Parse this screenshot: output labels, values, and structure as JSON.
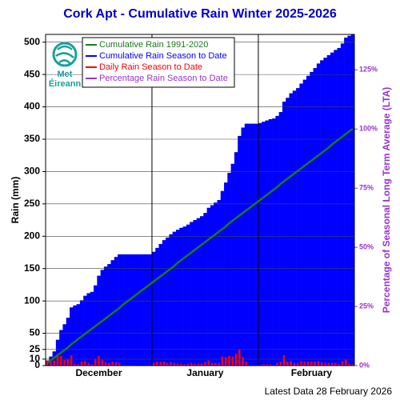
{
  "chart_data": {
    "type": "bar",
    "title": "Cork Apt - Cumulative Rain Winter 2025-2026",
    "y_label": "Rain (mm)",
    "y2_label": "Percentage  of Seasonal Long Term Average (LTA)",
    "footer": "Latest Data 28 February 2026",
    "logo": [
      "Met",
      "Éireann"
    ],
    "categories": [
      null,
      null,
      null,
      null,
      null,
      null,
      null,
      null,
      null,
      null,
      null,
      null,
      null,
      null,
      null,
      "December",
      null,
      null,
      null,
      null,
      null,
      null,
      null,
      null,
      null,
      null,
      null,
      null,
      null,
      null,
      null,
      null,
      null,
      null,
      null,
      null,
      null,
      null,
      null,
      null,
      null,
      null,
      null,
      null,
      null,
      null,
      "January",
      null,
      null,
      null,
      null,
      null,
      null,
      null,
      null,
      null,
      null,
      null,
      null,
      null,
      null,
      null,
      null,
      null,
      null,
      null,
      null,
      null,
      null,
      null,
      null,
      null,
      null,
      null,
      null,
      null,
      null,
      "February",
      null,
      null,
      null,
      null,
      null,
      null,
      null,
      null,
      null,
      null,
      null,
      null
    ],
    "series": [
      {
        "name": "Cumulative Rain 1991-2020",
        "color": "#1a7a1a",
        "kind": "line",
        "values": [
          4,
          8,
          12,
          16,
          20,
          24,
          28,
          33,
          37,
          41,
          45,
          49,
          53,
          57,
          61,
          65,
          69,
          73,
          77,
          81,
          85,
          89,
          94,
          98,
          102,
          106,
          110,
          114,
          118,
          122,
          126,
          130,
          134,
          138,
          142,
          146,
          150,
          154,
          159,
          163,
          167,
          171,
          175,
          179,
          183,
          187,
          191,
          195,
          199,
          203,
          207,
          211,
          215,
          220,
          224,
          228,
          232,
          236,
          240,
          244,
          248,
          252,
          256,
          260,
          264,
          268,
          272,
          276,
          281,
          285,
          289,
          293,
          297,
          301,
          305,
          309,
          313,
          317,
          321,
          325,
          329,
          333,
          337,
          342,
          346,
          350,
          354,
          358,
          362,
          366
        ]
      },
      {
        "name": "Cumulative Rain Season to Date",
        "color": "#0000ff",
        "kind": "bar",
        "values": [
          8,
          14,
          22,
          40,
          55,
          64,
          74,
          90,
          93,
          95,
          101,
          108,
          112,
          114,
          124,
          139,
          148,
          153,
          157,
          163,
          168,
          172,
          172,
          172,
          172,
          172,
          172,
          172,
          172,
          172,
          172,
          176,
          182,
          188,
          194,
          198,
          203,
          207,
          210,
          213,
          215,
          218,
          222,
          225,
          228,
          231,
          236,
          244,
          248,
          252,
          256,
          270,
          283,
          298,
          312,
          330,
          355,
          368,
          374,
          374,
          374,
          374,
          375,
          377,
          379,
          381,
          382,
          386,
          392,
          408,
          414,
          421,
          425,
          429,
          436,
          442,
          448,
          454,
          460,
          467,
          472,
          476,
          480,
          484,
          488,
          491,
          498,
          507,
          510,
          512
        ]
      },
      {
        "name": "Daily Rain Season to Date",
        "color": "#ff0000",
        "kind": "daily",
        "values": [
          8,
          6,
          8,
          18,
          15,
          9,
          10,
          16,
          3,
          2,
          6,
          7,
          4,
          2,
          10,
          15,
          9,
          5,
          4,
          6,
          5,
          4,
          0,
          0,
          0,
          0,
          0,
          0,
          0,
          0,
          0,
          4,
          6,
          6,
          6,
          4,
          5,
          4,
          3,
          3,
          2,
          3,
          4,
          3,
          3,
          3,
          5,
          8,
          4,
          4,
          4,
          14,
          13,
          15,
          14,
          18,
          25,
          13,
          6,
          0,
          0,
          0,
          1,
          2,
          2,
          2,
          1,
          4,
          6,
          16,
          6,
          7,
          4,
          4,
          7,
          6,
          6,
          6,
          6,
          7,
          5,
          4,
          4,
          4,
          4,
          3,
          7,
          9,
          3,
          2
        ]
      },
      {
        "name": "Percentage Rain Season to Date",
        "color": "#9933cc",
        "axis": "y2"
      }
    ],
    "ylim": [
      0,
      512
    ],
    "yticks": [
      0,
      10,
      25,
      50,
      100,
      150,
      200,
      250,
      300,
      350,
      400,
      450,
      500
    ],
    "y2lim": [
      0,
      140
    ],
    "y2ticks": [
      {
        "value": 0,
        "label": "0%"
      },
      {
        "value": 25,
        "label": "25%"
      },
      {
        "value": 50,
        "label": "50%"
      },
      {
        "value": 75,
        "label": "75%"
      },
      {
        "value": 100,
        "label": "100%"
      },
      {
        "value": 125,
        "label": "125%"
      }
    ],
    "grid": true
  }
}
